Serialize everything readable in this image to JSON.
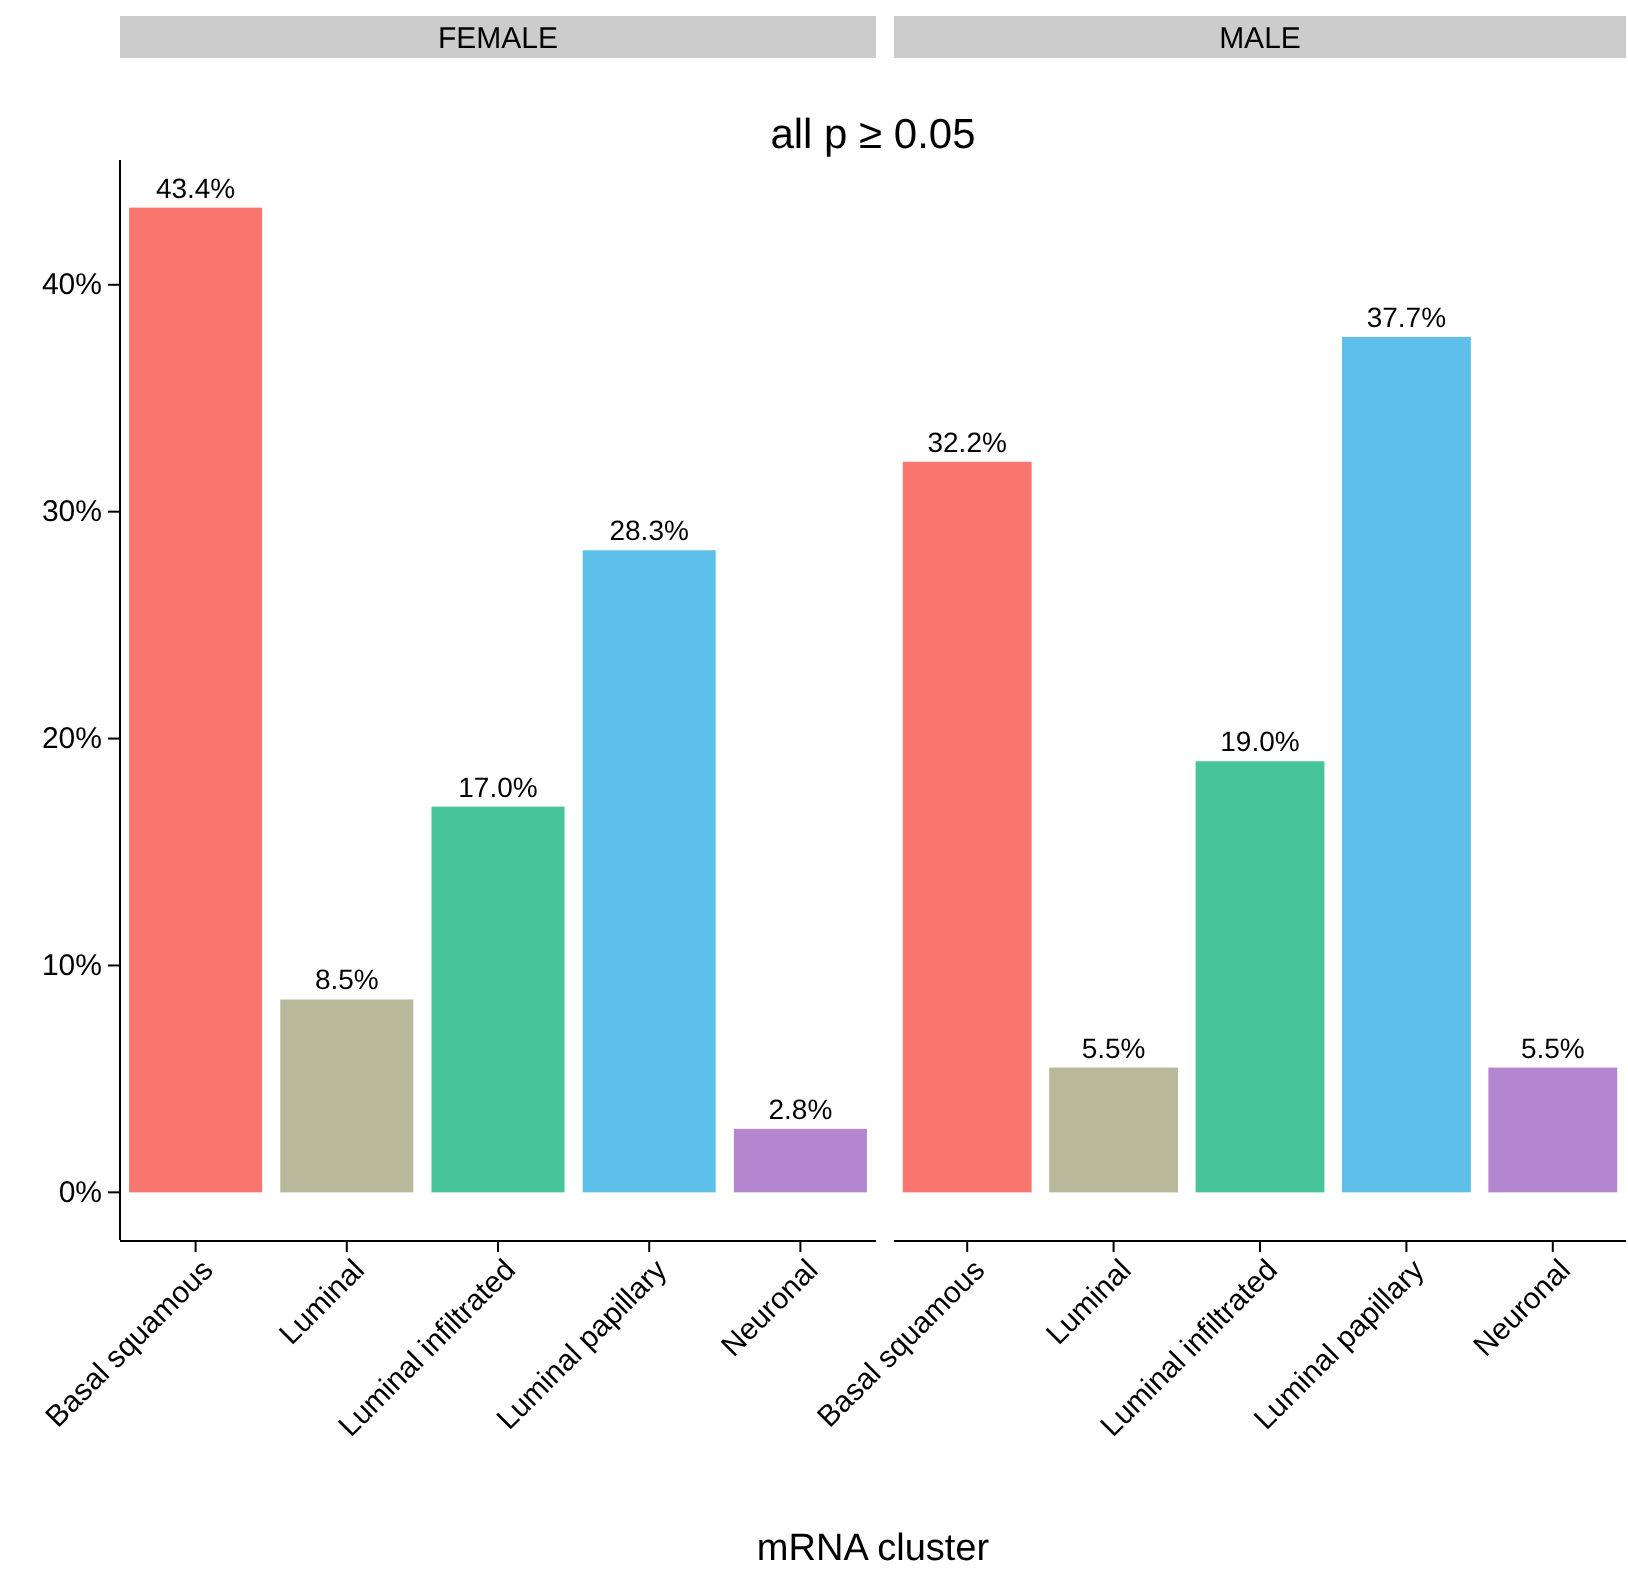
{
  "chart_data": [
    {
      "type": "bar",
      "title": "FEMALE",
      "subtitle": "all p ≥ 0.05",
      "xlabel": "mRNA cluster",
      "categories": [
        "Basal squamous",
        "Luminal",
        "Luminal infiltrated",
        "Luminal papillary",
        "Neuronal"
      ],
      "values": [
        43.4,
        8.5,
        17.0,
        28.3,
        2.8
      ],
      "value_labels": [
        "43.4%",
        "8.5%",
        "17.0%",
        "28.3%",
        "2.8%"
      ],
      "colors": [
        "#f8766d",
        "#b8b99a",
        "#48c49a",
        "#5ec0e8",
        "#b486d0"
      ],
      "ylim": [
        -2.1,
        45.5
      ],
      "yticks": [
        {
          "value": 0,
          "label": "0%"
        },
        {
          "value": 10,
          "label": "10%"
        },
        {
          "value": 20,
          "label": "20%"
        },
        {
          "value": 30,
          "label": "30%"
        },
        {
          "value": 40,
          "label": "40%"
        }
      ],
      "grid": false
    },
    {
      "type": "bar",
      "title": "MALE",
      "categories": [
        "Basal squamous",
        "Luminal",
        "Luminal infiltrated",
        "Luminal papillary",
        "Neuronal"
      ],
      "values": [
        32.2,
        5.5,
        19.0,
        37.7,
        5.5
      ],
      "value_labels": [
        "32.2%",
        "5.5%",
        "19.0%",
        "37.7%",
        "5.5%"
      ],
      "colors": [
        "#f8766d",
        "#b8b99a",
        "#48c49a",
        "#5ec0e8",
        "#b486d0"
      ],
      "tick_labels": "x",
      "grid": false
    }
  ]
}
